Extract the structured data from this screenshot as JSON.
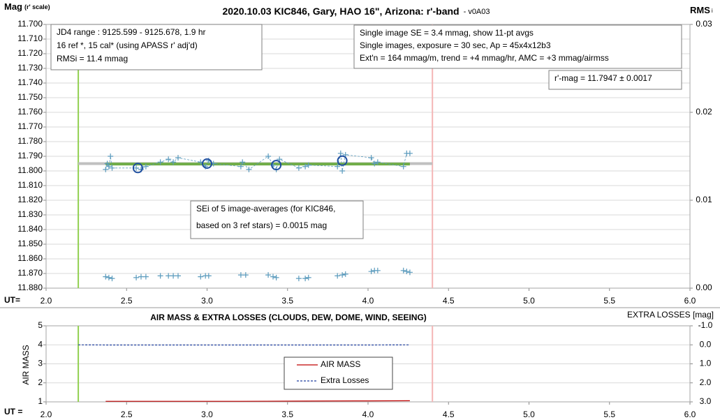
{
  "chart_data": [
    {
      "type": "scatter",
      "title": "2020.10.03 KIC846, Gary, HAO 16\", Arizona: r'-band",
      "title_suffix": "- v0A03",
      "ylabel": "Mag",
      "ylabel_note": "(r' scale)",
      "y2label": "RMS",
      "y2label_sub": "i",
      "xlabel": "UT=",
      "xlim": [
        2,
        6
      ],
      "xticks": [
        {
          "value": 2,
          "label": "2.0"
        },
        {
          "value": 2.5,
          "label": "2.5"
        },
        {
          "value": 3,
          "label": "3.0"
        },
        {
          "value": 3.5,
          "label": "3.5"
        },
        {
          "value": 4,
          "label": "4.0"
        },
        {
          "value": 4.5,
          "label": "4.5"
        },
        {
          "value": 5,
          "label": "5.0"
        },
        {
          "value": 5.5,
          "label": "5.5"
        },
        {
          "value": 6,
          "label": "6.0"
        }
      ],
      "ylim": [
        11.88,
        11.7
      ],
      "yticks": [
        {
          "value": 11.7,
          "label": "11.700"
        },
        {
          "value": 11.71,
          "label": "11.710"
        },
        {
          "value": 11.72,
          "label": "11.720"
        },
        {
          "value": 11.73,
          "label": "11.730"
        },
        {
          "value": 11.74,
          "label": "11.740"
        },
        {
          "value": 11.75,
          "label": "11.750"
        },
        {
          "value": 11.76,
          "label": "11.760"
        },
        {
          "value": 11.77,
          "label": "11.770"
        },
        {
          "value": 11.78,
          "label": "11.780"
        },
        {
          "value": 11.79,
          "label": "11.790"
        },
        {
          "value": 11.8,
          "label": "11.800"
        },
        {
          "value": 11.81,
          "label": "11.810"
        },
        {
          "value": 11.82,
          "label": "11.820"
        },
        {
          "value": 11.83,
          "label": "11.830"
        },
        {
          "value": 11.84,
          "label": "11.840"
        },
        {
          "value": 11.85,
          "label": "11.850"
        },
        {
          "value": 11.86,
          "label": "11.860"
        },
        {
          "value": 11.87,
          "label": "11.870"
        },
        {
          "value": 11.88,
          "label": "11.880"
        }
      ],
      "y2lim": [
        0,
        0.03
      ],
      "y2ticks": [
        {
          "value": 0,
          "label": "0.00"
        },
        {
          "value": 0.01,
          "label": "0.01"
        },
        {
          "value": 0.02,
          "label": "0.02"
        },
        {
          "value": 0.03,
          "label": "0.03"
        }
      ],
      "grid": true,
      "vlines": [
        {
          "x": 2.2,
          "color": "#92d050"
        },
        {
          "x": 4.4,
          "color": "#f4b6b6"
        }
      ],
      "annotations": [
        {
          "lines": [
            "JD4 range : 9125.599 - 9125.678,  1.9  hr",
            "16 ref *, 15 cal* (using APASS r' adj'd)",
            "RMSi = 11.4 mmag"
          ]
        },
        {
          "lines": [
            "Single image SE = 3.4 mmag, show  11-pt avgs",
            "Single images, exposure = 30 sec, Ap = 45x4x12b3",
            "Ext'n = 164 mmag/m, trend =  +4 mmag/hr, AMC = +3 mmag/airmss"
          ]
        },
        {
          "lines": [
            "r'-mag = 11.7947 ± 0.0017"
          ]
        },
        {
          "lines": [
            "SEi of 5 image-averages (for KIC846,",
            "based on 3 ref stars) = 0.0015 mag"
          ]
        }
      ],
      "series": [
        {
          "marker": "line",
          "color": "#c0c0c0",
          "x": [
            2.2,
            4.4
          ],
          "values": [
            11.795,
            11.795
          ]
        },
        {
          "marker": "line",
          "color": "#70ad47",
          "x": [
            2.37,
            4.26
          ],
          "values": [
            11.7953,
            11.7953
          ]
        },
        {
          "marker": "plus",
          "line_style": "dashed",
          "color": "#5b9bbd",
          "x": [
            2.37,
            2.38,
            2.39,
            2.4,
            2.41,
            2.56,
            2.59,
            2.62,
            2.71,
            2.76,
            2.79,
            2.82,
            2.96,
            2.99,
            3.01,
            3.04,
            3.21,
            3.22,
            3.26,
            3.38,
            3.41,
            3.43,
            3.45,
            3.57,
            3.61,
            3.63,
            3.81,
            3.83,
            3.84,
            3.86,
            4.02,
            4.04,
            4.06,
            4.22,
            4.24,
            4.26
          ],
          "values": [
            11.799,
            11.795,
            11.797,
            11.79,
            11.798,
            11.798,
            11.799,
            11.797,
            11.794,
            11.792,
            11.794,
            11.791,
            11.794,
            11.797,
            11.793,
            11.795,
            11.797,
            11.794,
            11.799,
            11.79,
            11.796,
            11.799,
            11.792,
            11.798,
            11.797,
            11.796,
            11.797,
            11.788,
            11.8,
            11.789,
            11.791,
            11.795,
            11.794,
            11.797,
            11.788,
            11.788
          ]
        },
        {
          "marker": "circle",
          "color": "#1f4ea0",
          "x": [
            2.57,
            3.0,
            3.43,
            3.84
          ],
          "values": [
            11.798,
            11.795,
            11.796,
            11.793
          ]
        },
        {
          "marker": "plus",
          "axis": "y2",
          "color": "#5b9bbd",
          "x": [
            2.37,
            2.39,
            2.41,
            2.56,
            2.59,
            2.62,
            2.71,
            2.76,
            2.79,
            2.82,
            2.96,
            2.99,
            3.01,
            3.21,
            3.24,
            3.38,
            3.41,
            3.43,
            3.57,
            3.61,
            3.63,
            3.81,
            3.84,
            3.86,
            4.02,
            4.04,
            4.06,
            4.22,
            4.24,
            4.26
          ],
          "values": [
            0.0013,
            0.0012,
            0.0011,
            0.0012,
            0.0013,
            0.0013,
            0.0014,
            0.0014,
            0.0014,
            0.0014,
            0.0013,
            0.0014,
            0.0014,
            0.0015,
            0.0015,
            0.0015,
            0.0013,
            0.0012,
            0.0011,
            0.0011,
            0.0012,
            0.0014,
            0.0015,
            0.0016,
            0.0019,
            0.002,
            0.002,
            0.002,
            0.0019,
            0.0018
          ]
        }
      ]
    },
    {
      "type": "line",
      "title": "AIR MASS & EXTRA LOSSES (CLOUDS, DEW, DOME, WIND, SEEING)",
      "ylabel": "AIR MASS",
      "y2label": "EXTRA LOSSES [mag]",
      "xlabel": "UT =",
      "xlim": [
        2,
        6
      ],
      "xticks": [
        {
          "value": 2,
          "label": "2.0"
        },
        {
          "value": 2.5,
          "label": "2.5"
        },
        {
          "value": 3,
          "label": "3.0"
        },
        {
          "value": 3.5,
          "label": "3.5"
        },
        {
          "value": 4,
          "label": "4.0"
        },
        {
          "value": 4.5,
          "label": "4.5"
        },
        {
          "value": 5,
          "label": "5.0"
        },
        {
          "value": 5.5,
          "label": "5.5"
        },
        {
          "value": 6,
          "label": "6.0"
        }
      ],
      "ylim": [
        1,
        5
      ],
      "yticks": [
        1,
        2,
        3,
        4,
        5
      ],
      "y2lim": [
        3,
        -1
      ],
      "y2ticks": [
        {
          "value": -1,
          "label": "-1.0"
        },
        {
          "value": 0,
          "label": "0.0"
        },
        {
          "value": 1,
          "label": "1.0"
        },
        {
          "value": 2,
          "label": "2.0"
        },
        {
          "value": 3,
          "label": "3.0"
        }
      ],
      "grid": true,
      "legend": "center",
      "vlines": [
        {
          "x": 2.2,
          "color": "#92d050"
        },
        {
          "x": 4.4,
          "color": "#f4b6b6"
        }
      ],
      "series": [
        {
          "name": "AIR MASS",
          "color": "#c00000",
          "line_style": "solid",
          "x": [
            2.37,
            2.8,
            3.2,
            3.6,
            4.0,
            4.26
          ],
          "values": [
            1.03,
            1.03,
            1.03,
            1.04,
            1.05,
            1.06
          ]
        },
        {
          "name": "Extra Losses",
          "axis": "y2",
          "color": "#1f3f9f",
          "line_style": "dashed",
          "x": [
            2.2,
            2.4,
            2.6,
            2.8,
            3.0,
            3.2,
            3.4,
            3.6,
            3.8,
            4.0,
            4.26
          ],
          "values": [
            0,
            0.01,
            0.01,
            0.01,
            0.01,
            0.01,
            0.01,
            0.01,
            0.01,
            0.01,
            0
          ]
        }
      ]
    }
  ]
}
